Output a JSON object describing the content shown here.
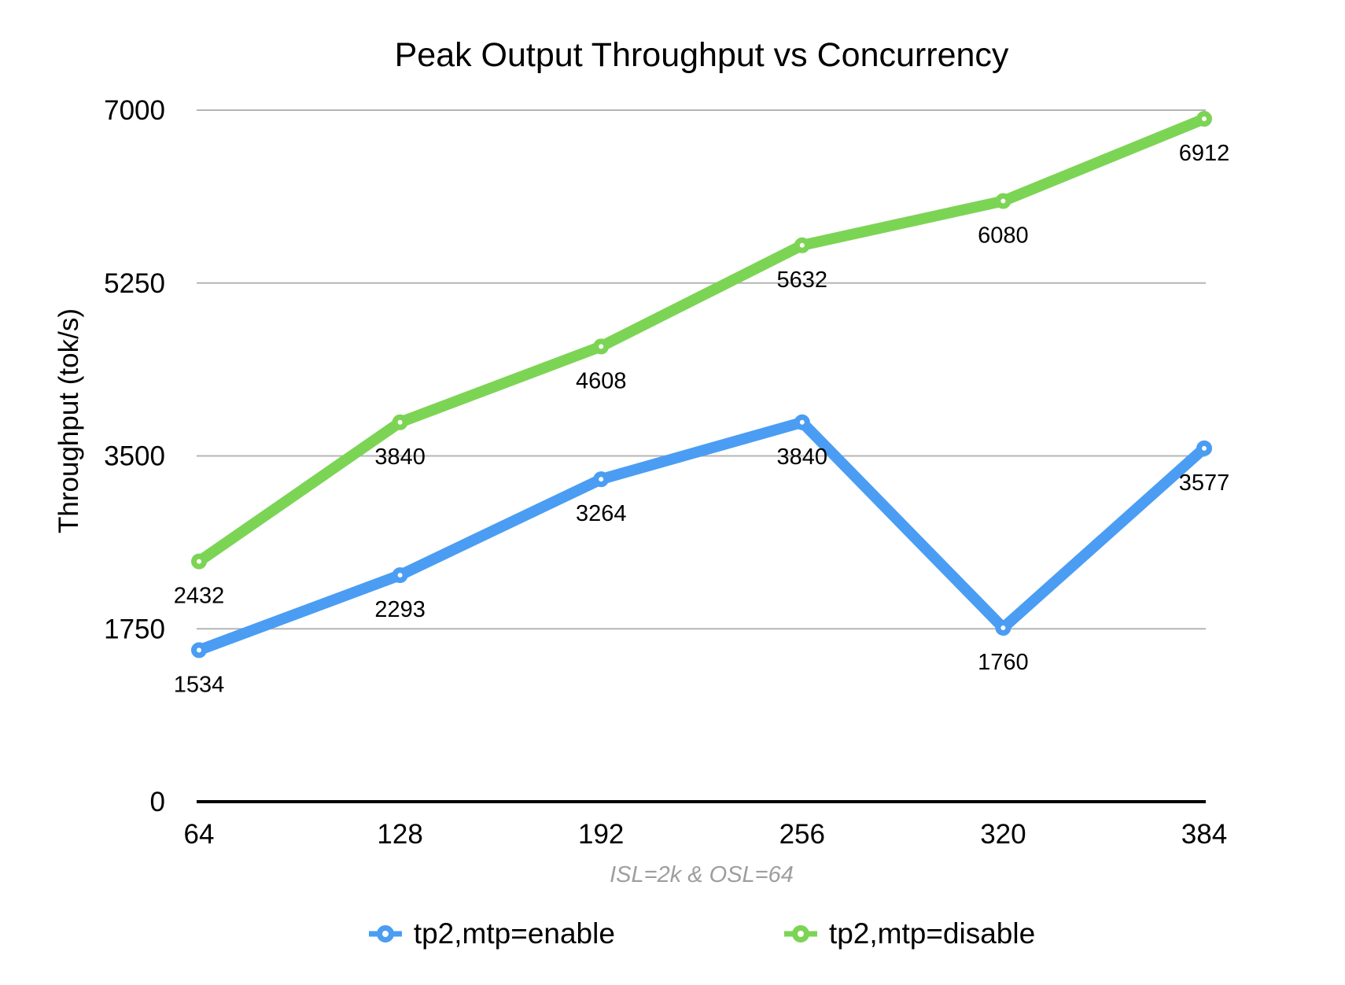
{
  "chart_data": {
    "type": "line",
    "title": "Peak Output Throughput vs Concurrency",
    "ylabel": "Throughput (tok/s)",
    "xlabel_note": "ISL=2k & OSL=64",
    "categories": [
      64,
      128,
      192,
      256,
      320,
      384
    ],
    "series": [
      {
        "name": "tp2,mtp=enable",
        "color": "#4A9DF2",
        "values": [
          1534,
          2293,
          3264,
          3840,
          1760,
          3577
        ]
      },
      {
        "name": "tp2,mtp=disable",
        "color": "#7CD455",
        "values": [
          2432,
          3840,
          4608,
          5632,
          6080,
          6912
        ]
      }
    ],
    "ylim": [
      0,
      7000
    ],
    "yticks": [
      0,
      1750,
      3500,
      5250,
      7000
    ],
    "grid": true,
    "data_labels": true,
    "legend_position": "bottom",
    "colors": {
      "gridline": "#B5B5B5",
      "axis": "#000000",
      "note_gray": "#9E9E9E",
      "label_text": "#000000"
    }
  }
}
